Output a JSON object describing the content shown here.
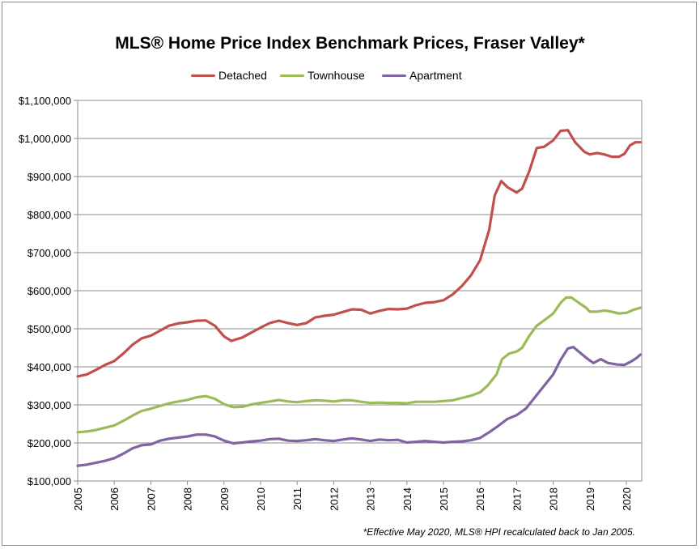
{
  "chart_data": {
    "type": "line",
    "title": "MLS® Home Price Index Benchmark Prices, Fraser Valley*",
    "footnote": "*Effective May 2020, MLS® HPI recalculated back to Jan 2005.",
    "xlabel": "",
    "ylabel": "",
    "ylim": [
      100000,
      1100000
    ],
    "xlim": [
      2005.0,
      2020.42
    ],
    "y_ticks": [
      {
        "value": 100000,
        "label": "$100,000"
      },
      {
        "value": 200000,
        "label": "$200,000"
      },
      {
        "value": 300000,
        "label": "$300,000"
      },
      {
        "value": 400000,
        "label": "$400,000"
      },
      {
        "value": 500000,
        "label": "$500,000"
      },
      {
        "value": 600000,
        "label": "$600,000"
      },
      {
        "value": 700000,
        "label": "$700,000"
      },
      {
        "value": 800000,
        "label": "$800,000"
      },
      {
        "value": 900000,
        "label": "$900,000"
      },
      {
        "value": 1000000,
        "label": "$1,000,000"
      },
      {
        "value": 1100000,
        "label": "$1,100,000"
      }
    ],
    "x_ticks": [
      {
        "value": 2005,
        "label": "2005"
      },
      {
        "value": 2006,
        "label": "2006"
      },
      {
        "value": 2007,
        "label": "2007"
      },
      {
        "value": 2008,
        "label": "2008"
      },
      {
        "value": 2009,
        "label": "2009"
      },
      {
        "value": 2010,
        "label": "2010"
      },
      {
        "value": 2011,
        "label": "2011"
      },
      {
        "value": 2012,
        "label": "2012"
      },
      {
        "value": 2013,
        "label": "2013"
      },
      {
        "value": 2014,
        "label": "2014"
      },
      {
        "value": 2015,
        "label": "2015"
      },
      {
        "value": 2016,
        "label": "2016"
      },
      {
        "value": 2017,
        "label": "2017"
      },
      {
        "value": 2018,
        "label": "2018"
      },
      {
        "value": 2019,
        "label": "2019"
      },
      {
        "value": 2020,
        "label": "2020"
      }
    ],
    "grid": "horizontal",
    "legend_position": "top",
    "series": [
      {
        "name": "Detached",
        "color": "#c0504d",
        "points": [
          [
            2005.0,
            375000
          ],
          [
            2005.25,
            380000
          ],
          [
            2005.5,
            392000
          ],
          [
            2005.75,
            405000
          ],
          [
            2006.0,
            415000
          ],
          [
            2006.25,
            435000
          ],
          [
            2006.5,
            458000
          ],
          [
            2006.75,
            475000
          ],
          [
            2007.0,
            482000
          ],
          [
            2007.25,
            495000
          ],
          [
            2007.5,
            508000
          ],
          [
            2007.75,
            514000
          ],
          [
            2008.0,
            517000
          ],
          [
            2008.25,
            521000
          ],
          [
            2008.5,
            522000
          ],
          [
            2008.75,
            508000
          ],
          [
            2009.0,
            480000
          ],
          [
            2009.2,
            468000
          ],
          [
            2009.5,
            477000
          ],
          [
            2009.75,
            490000
          ],
          [
            2010.0,
            503000
          ],
          [
            2010.25,
            515000
          ],
          [
            2010.5,
            521000
          ],
          [
            2010.75,
            515000
          ],
          [
            2011.0,
            510000
          ],
          [
            2011.25,
            515000
          ],
          [
            2011.5,
            530000
          ],
          [
            2011.75,
            534000
          ],
          [
            2012.0,
            537000
          ],
          [
            2012.25,
            544000
          ],
          [
            2012.5,
            551000
          ],
          [
            2012.75,
            550000
          ],
          [
            2013.0,
            540000
          ],
          [
            2013.25,
            547000
          ],
          [
            2013.5,
            552000
          ],
          [
            2013.75,
            551000
          ],
          [
            2014.0,
            553000
          ],
          [
            2014.25,
            562000
          ],
          [
            2014.5,
            568000
          ],
          [
            2014.75,
            570000
          ],
          [
            2015.0,
            575000
          ],
          [
            2015.25,
            590000
          ],
          [
            2015.5,
            612000
          ],
          [
            2015.75,
            640000
          ],
          [
            2016.0,
            680000
          ],
          [
            2016.25,
            760000
          ],
          [
            2016.4,
            850000
          ],
          [
            2016.58,
            888000
          ],
          [
            2016.75,
            872000
          ],
          [
            2017.0,
            858000
          ],
          [
            2017.15,
            868000
          ],
          [
            2017.35,
            915000
          ],
          [
            2017.55,
            975000
          ],
          [
            2017.75,
            978000
          ],
          [
            2018.0,
            995000
          ],
          [
            2018.2,
            1020000
          ],
          [
            2018.4,
            1022000
          ],
          [
            2018.6,
            990000
          ],
          [
            2018.85,
            965000
          ],
          [
            2019.0,
            958000
          ],
          [
            2019.2,
            962000
          ],
          [
            2019.4,
            958000
          ],
          [
            2019.6,
            952000
          ],
          [
            2019.8,
            952000
          ],
          [
            2019.95,
            960000
          ],
          [
            2020.1,
            982000
          ],
          [
            2020.25,
            990000
          ],
          [
            2020.38,
            990000
          ]
        ]
      },
      {
        "name": "Townhouse",
        "color": "#9bbb59",
        "points": [
          [
            2005.0,
            228000
          ],
          [
            2005.25,
            230000
          ],
          [
            2005.5,
            234000
          ],
          [
            2005.75,
            240000
          ],
          [
            2006.0,
            246000
          ],
          [
            2006.25,
            258000
          ],
          [
            2006.5,
            272000
          ],
          [
            2006.75,
            284000
          ],
          [
            2007.0,
            290000
          ],
          [
            2007.25,
            297000
          ],
          [
            2007.5,
            304000
          ],
          [
            2007.75,
            309000
          ],
          [
            2008.0,
            313000
          ],
          [
            2008.25,
            320000
          ],
          [
            2008.5,
            323000
          ],
          [
            2008.75,
            316000
          ],
          [
            2009.0,
            302000
          ],
          [
            2009.25,
            294000
          ],
          [
            2009.5,
            295000
          ],
          [
            2009.75,
            301000
          ],
          [
            2010.0,
            305000
          ],
          [
            2010.25,
            309000
          ],
          [
            2010.5,
            313000
          ],
          [
            2010.75,
            309000
          ],
          [
            2011.0,
            307000
          ],
          [
            2011.25,
            310000
          ],
          [
            2011.5,
            312000
          ],
          [
            2011.75,
            311000
          ],
          [
            2012.0,
            309000
          ],
          [
            2012.25,
            312000
          ],
          [
            2012.5,
            312000
          ],
          [
            2012.75,
            308000
          ],
          [
            2013.0,
            305000
          ],
          [
            2013.25,
            306000
          ],
          [
            2013.5,
            305000
          ],
          [
            2013.75,
            305000
          ],
          [
            2014.0,
            304000
          ],
          [
            2014.25,
            308000
          ],
          [
            2014.5,
            308000
          ],
          [
            2014.75,
            308000
          ],
          [
            2015.0,
            310000
          ],
          [
            2015.25,
            312000
          ],
          [
            2015.5,
            318000
          ],
          [
            2015.75,
            324000
          ],
          [
            2016.0,
            333000
          ],
          [
            2016.2,
            350000
          ],
          [
            2016.45,
            380000
          ],
          [
            2016.6,
            420000
          ],
          [
            2016.8,
            435000
          ],
          [
            2017.0,
            440000
          ],
          [
            2017.15,
            450000
          ],
          [
            2017.35,
            482000
          ],
          [
            2017.55,
            508000
          ],
          [
            2017.75,
            522000
          ],
          [
            2018.0,
            540000
          ],
          [
            2018.2,
            568000
          ],
          [
            2018.35,
            582000
          ],
          [
            2018.5,
            582000
          ],
          [
            2018.7,
            568000
          ],
          [
            2018.9,
            555000
          ],
          [
            2019.0,
            545000
          ],
          [
            2019.2,
            545000
          ],
          [
            2019.4,
            548000
          ],
          [
            2019.6,
            545000
          ],
          [
            2019.8,
            540000
          ],
          [
            2020.0,
            542000
          ],
          [
            2020.2,
            550000
          ],
          [
            2020.38,
            555000
          ]
        ]
      },
      {
        "name": "Apartment",
        "color": "#8064a2",
        "points": [
          [
            2005.0,
            140000
          ],
          [
            2005.25,
            143000
          ],
          [
            2005.5,
            148000
          ],
          [
            2005.75,
            153000
          ],
          [
            2006.0,
            160000
          ],
          [
            2006.25,
            172000
          ],
          [
            2006.5,
            186000
          ],
          [
            2006.75,
            194000
          ],
          [
            2007.0,
            196000
          ],
          [
            2007.25,
            206000
          ],
          [
            2007.5,
            211000
          ],
          [
            2007.75,
            214000
          ],
          [
            2008.0,
            217000
          ],
          [
            2008.25,
            222000
          ],
          [
            2008.5,
            222000
          ],
          [
            2008.75,
            217000
          ],
          [
            2009.0,
            206000
          ],
          [
            2009.25,
            199000
          ],
          [
            2009.5,
            201000
          ],
          [
            2009.75,
            204000
          ],
          [
            2010.0,
            206000
          ],
          [
            2010.25,
            210000
          ],
          [
            2010.5,
            211000
          ],
          [
            2010.75,
            206000
          ],
          [
            2011.0,
            205000
          ],
          [
            2011.25,
            207000
          ],
          [
            2011.5,
            210000
          ],
          [
            2011.75,
            207000
          ],
          [
            2012.0,
            205000
          ],
          [
            2012.25,
            209000
          ],
          [
            2012.5,
            212000
          ],
          [
            2012.75,
            209000
          ],
          [
            2013.0,
            205000
          ],
          [
            2013.25,
            209000
          ],
          [
            2013.5,
            207000
          ],
          [
            2013.75,
            208000
          ],
          [
            2014.0,
            201000
          ],
          [
            2014.25,
            203000
          ],
          [
            2014.5,
            205000
          ],
          [
            2014.75,
            203000
          ],
          [
            2015.0,
            201000
          ],
          [
            2015.25,
            203000
          ],
          [
            2015.5,
            204000
          ],
          [
            2015.75,
            207000
          ],
          [
            2016.0,
            213000
          ],
          [
            2016.25,
            228000
          ],
          [
            2016.5,
            245000
          ],
          [
            2016.75,
            263000
          ],
          [
            2017.0,
            273000
          ],
          [
            2017.25,
            290000
          ],
          [
            2017.5,
            320000
          ],
          [
            2017.75,
            350000
          ],
          [
            2018.0,
            380000
          ],
          [
            2018.2,
            418000
          ],
          [
            2018.4,
            448000
          ],
          [
            2018.55,
            452000
          ],
          [
            2018.75,
            436000
          ],
          [
            2018.95,
            420000
          ],
          [
            2019.1,
            410000
          ],
          [
            2019.3,
            420000
          ],
          [
            2019.5,
            410000
          ],
          [
            2019.75,
            406000
          ],
          [
            2019.95,
            405000
          ],
          [
            2020.15,
            415000
          ],
          [
            2020.3,
            425000
          ],
          [
            2020.38,
            432000
          ]
        ]
      }
    ]
  }
}
